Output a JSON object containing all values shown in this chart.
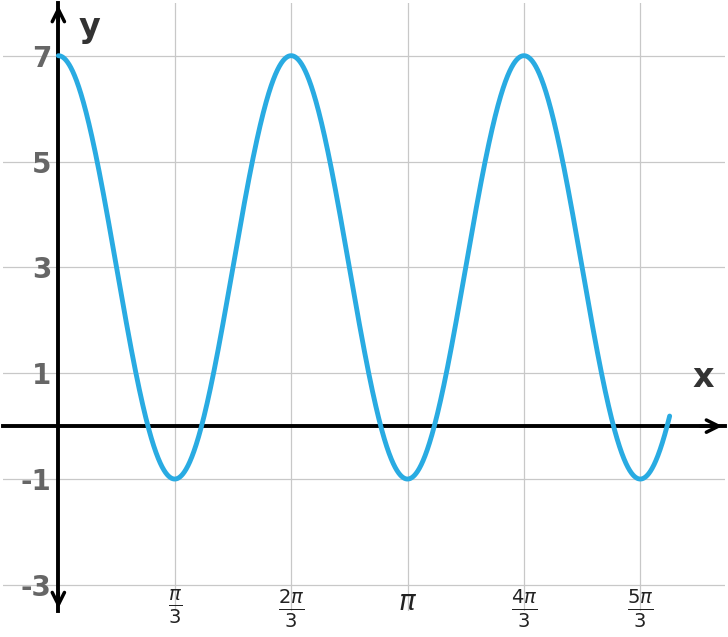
{
  "amplitude": 4,
  "vertical_shift": 3,
  "frequency": 3,
  "x_start": 0,
  "x_end": 5.5,
  "ylim_bottom": -3.5,
  "ylim_top": 8.0,
  "xlim_left": -0.5,
  "xlim_right": 6.0,
  "y_ticks": [
    -3,
    -1,
    1,
    3,
    5,
    7
  ],
  "x_tick_values": [
    1.0471975511965976,
    2.0943951023931953,
    3.141592653589793,
    4.1887902047863905,
    5.235987755982988
  ],
  "line_color": "#29ABE2",
  "line_width": 3.5,
  "grid_color": "#C8C8C8",
  "axis_color": "#000000",
  "background_color": "#FFFFFF",
  "xlabel": "x",
  "ylabel": "y",
  "label_fontsize": 24,
  "tick_fontsize": 20,
  "ytick_color": "#666666",
  "xtick_color": "#222222"
}
